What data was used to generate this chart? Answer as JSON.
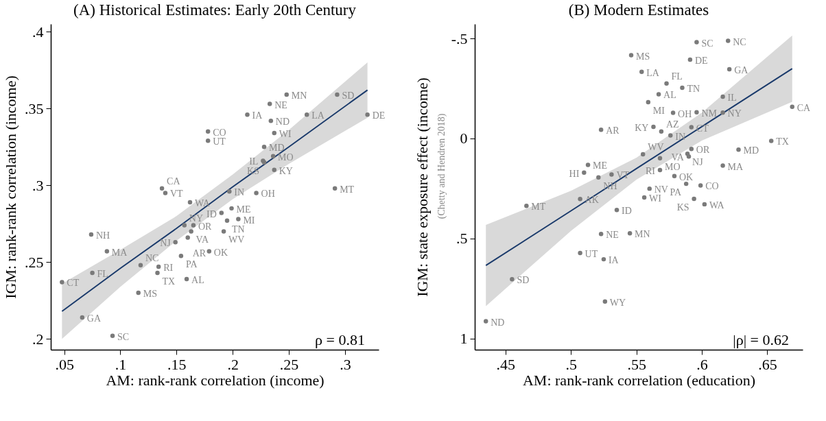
{
  "chart_data": [
    {
      "type": "scatter",
      "title": "(A) Historical Estimates: Early 20th Century",
      "xlabel": "AM: rank-rank correlation (income)",
      "ylabel": "IGM: rank-rank correlation (income)",
      "xlim": [
        0.038,
        0.33
      ],
      "ylim": [
        0.193,
        0.405
      ],
      "xticks": [
        {
          "value": 0.05,
          "label": ".05"
        },
        {
          "value": 0.1,
          "label": ".1"
        },
        {
          "value": 0.15,
          "label": ".15"
        },
        {
          "value": 0.2,
          "label": ".2"
        },
        {
          "value": 0.25,
          "label": ".25"
        },
        {
          "value": 0.3,
          "label": ".3"
        }
      ],
      "yticks": [
        {
          "value": 0.2,
          "label": ".2"
        },
        {
          "value": 0.25,
          "label": ".25"
        },
        {
          "value": 0.3,
          "label": ".3"
        },
        {
          "value": 0.35,
          "label": ".35"
        },
        {
          "value": 0.4,
          "label": ".4"
        }
      ],
      "series": [
        {
          "type": "scatter",
          "marker": "circle",
          "color": "#7a7a7a",
          "x": [
            0.248,
            0.293,
            0.233,
            0.213,
            0.266,
            0.32,
            0.234,
            0.178,
            0.178,
            0.237,
            0.228,
            0.236,
            0.227,
            0.228,
            0.237,
            0.137,
            0.14,
            0.291,
            0.197,
            0.221,
            0.162,
            0.199,
            0.19,
            0.205,
            0.195,
            0.157,
            0.165,
            0.163,
            0.192,
            0.16,
            0.074,
            0.149,
            0.088,
            0.179,
            0.154,
            0.118,
            0.134,
            0.075,
            0.133,
            0.159,
            0.048,
            0.116,
            0.066,
            0.093
          ],
          "values": [
            0.359,
            0.359,
            0.353,
            0.346,
            0.346,
            0.346,
            0.342,
            0.335,
            0.329,
            0.334,
            0.325,
            0.319,
            0.316,
            0.315,
            0.31,
            0.298,
            0.295,
            0.298,
            0.296,
            0.295,
            0.289,
            0.285,
            0.282,
            0.278,
            0.277,
            0.274,
            0.274,
            0.27,
            0.27,
            0.266,
            0.268,
            0.263,
            0.257,
            0.257,
            0.254,
            0.248,
            0.247,
            0.243,
            0.243,
            0.239,
            0.237,
            0.23,
            0.214,
            0.202
          ]
        },
        {
          "type": "line",
          "color": "#1a3a6b",
          "x": [
            0.048,
            0.1,
            0.15,
            0.2,
            0.25,
            0.32
          ],
          "values": [
            0.218,
            0.246,
            0.272,
            0.299,
            0.325,
            0.362
          ],
          "lower": [
            0.2,
            0.234,
            0.264,
            0.291,
            0.314,
            0.344
          ],
          "upper": [
            0.236,
            0.258,
            0.28,
            0.307,
            0.336,
            0.38
          ]
        }
      ],
      "annotations": [
        {
          "text": "MN",
          "x": 0.248,
          "y": 0.359
        },
        {
          "text": "SD",
          "x": 0.293,
          "y": 0.359
        },
        {
          "text": "NE",
          "x": 0.233,
          "y": 0.353
        },
        {
          "text": "IA",
          "x": 0.213,
          "y": 0.346
        },
        {
          "text": "LA",
          "x": 0.266,
          "y": 0.346
        },
        {
          "text": "DE",
          "x": 0.32,
          "y": 0.346
        },
        {
          "text": "ND",
          "x": 0.234,
          "y": 0.342
        },
        {
          "text": "CO",
          "x": 0.178,
          "y": 0.335
        },
        {
          "text": "UT",
          "x": 0.178,
          "y": 0.329
        },
        {
          "text": "WI",
          "x": 0.237,
          "y": 0.334
        },
        {
          "text": "MD",
          "x": 0.228,
          "y": 0.325
        },
        {
          "text": "MO",
          "x": 0.236,
          "y": 0.319
        },
        {
          "text": "IL",
          "x": 0.227,
          "y": 0.316
        },
        {
          "text": "KS",
          "x": 0.228,
          "y": 0.315
        },
        {
          "text": "KY",
          "x": 0.237,
          "y": 0.31
        },
        {
          "text": "CA",
          "x": 0.137,
          "y": 0.298
        },
        {
          "text": "VT",
          "x": 0.14,
          "y": 0.295
        },
        {
          "text": "MT",
          "x": 0.291,
          "y": 0.298
        },
        {
          "text": "IN",
          "x": 0.197,
          "y": 0.296
        },
        {
          "text": "OH",
          "x": 0.221,
          "y": 0.295
        },
        {
          "text": "WA",
          "x": 0.162,
          "y": 0.289
        },
        {
          "text": "ME",
          "x": 0.199,
          "y": 0.285
        },
        {
          "text": "ID",
          "x": 0.19,
          "y": 0.282
        },
        {
          "text": "MI",
          "x": 0.205,
          "y": 0.278
        },
        {
          "text": "TN",
          "x": 0.195,
          "y": 0.277
        },
        {
          "text": "NY",
          "x": 0.157,
          "y": 0.274
        },
        {
          "text": "OR",
          "x": 0.165,
          "y": 0.274
        },
        {
          "text": "VA",
          "x": 0.163,
          "y": 0.27
        },
        {
          "text": "WV",
          "x": 0.192,
          "y": 0.27
        },
        {
          "text": "AR",
          "x": 0.16,
          "y": 0.266
        },
        {
          "text": "NH",
          "x": 0.074,
          "y": 0.268
        },
        {
          "text": "NJ",
          "x": 0.149,
          "y": 0.263
        },
        {
          "text": "MA",
          "x": 0.088,
          "y": 0.257
        },
        {
          "text": "OK",
          "x": 0.179,
          "y": 0.257
        },
        {
          "text": "PA",
          "x": 0.154,
          "y": 0.254
        },
        {
          "text": "NC",
          "x": 0.118,
          "y": 0.248
        },
        {
          "text": "RI",
          "x": 0.134,
          "y": 0.247
        },
        {
          "text": "FL",
          "x": 0.075,
          "y": 0.243
        },
        {
          "text": "TX",
          "x": 0.133,
          "y": 0.243
        },
        {
          "text": "AL",
          "x": 0.159,
          "y": 0.239
        },
        {
          "text": "CT",
          "x": 0.048,
          "y": 0.237
        },
        {
          "text": "MS",
          "x": 0.116,
          "y": 0.23
        },
        {
          "text": "GA",
          "x": 0.066,
          "y": 0.214
        },
        {
          "text": "SC",
          "x": 0.093,
          "y": 0.202
        },
        "ρ =  0.81"
      ]
    },
    {
      "type": "scatter",
      "title": "(B) Modern Estimates",
      "xlabel": "AM: rank-rank correlation (education)",
      "ylabel": "IGM: state exposure effect (income)",
      "xlim": [
        0.4265,
        0.677
      ],
      "ylim": [
        1.056,
        -0.572
      ],
      "xticks": [
        {
          "value": 0.45,
          "label": ".45"
        },
        {
          "value": 0.5,
          "label": ".5"
        },
        {
          "value": 0.55,
          "label": ".55"
        },
        {
          "value": 0.6,
          "label": ".6"
        },
        {
          "value": 0.65,
          "label": ".65"
        }
      ],
      "yticks": [
        {
          "value": -0.5,
          "label": "-.5"
        },
        0,
        {
          "value": 0.5,
          "label": ".5"
        },
        1
      ],
      "series": [
        {
          "type": "scatter",
          "marker": "circle",
          "color": "#7a7a7a",
          "x": [
            0.596,
            0.62,
            0.546,
            0.591,
            0.621,
            0.554,
            0.573,
            0.585,
            0.567,
            0.616,
            0.559,
            0.578,
            0.596,
            0.616,
            0.669,
            0.523,
            0.563,
            0.569,
            0.576,
            0.592,
            0.653,
            0.592,
            0.628,
            0.555,
            0.589,
            0.59,
            0.568,
            0.513,
            0.616,
            0.51,
            0.568,
            0.531,
            0.521,
            0.579,
            0.588,
            0.599,
            0.56,
            0.556,
            0.594,
            0.602,
            0.507,
            0.466,
            0.535,
            0.523,
            0.545,
            0.507,
            0.525,
            0.455,
            0.526,
            0.435
          ],
          "values": [
            -0.481,
            -0.488,
            -0.416,
            -0.394,
            -0.346,
            -0.333,
            -0.275,
            -0.253,
            -0.221,
            -0.209,
            -0.181,
            -0.128,
            -0.131,
            -0.129,
            -0.158,
            -0.043,
            -0.058,
            -0.035,
            -0.015,
            -0.056,
            0.012,
            0.053,
            0.056,
            0.079,
            0.077,
            0.09,
            0.099,
            0.132,
            0.136,
            0.171,
            0.158,
            0.18,
            0.195,
            0.188,
            0.227,
            0.235,
            0.251,
            0.295,
            0.302,
            0.329,
            0.303,
            0.337,
            0.358,
            0.478,
            0.474,
            0.573,
            0.604,
            0.704,
            0.815,
            0.914
          ]
        },
        {
          "type": "line",
          "color": "#1a3a6b",
          "x": [
            0.435,
            0.5,
            0.55,
            0.6,
            0.669
          ],
          "values": [
            0.635,
            0.362,
            0.151,
            -0.059,
            -0.349
          ],
          "lower": [
            0.432,
            0.262,
            0.096,
            -0.129,
            -0.515
          ],
          "upper": [
            0.838,
            0.462,
            0.206,
            0.011,
            -0.183
          ]
        }
      ],
      "annotations": [
        {
          "text": "SC",
          "x": 0.596,
          "y": -0.481
        },
        {
          "text": "NC",
          "x": 0.62,
          "y": -0.488
        },
        {
          "text": "MS",
          "x": 0.546,
          "y": -0.416
        },
        {
          "text": "DE",
          "x": 0.591,
          "y": -0.394
        },
        {
          "text": "GA",
          "x": 0.621,
          "y": -0.346
        },
        {
          "text": "LA",
          "x": 0.554,
          "y": -0.333
        },
        {
          "text": "FL",
          "x": 0.573,
          "y": -0.275
        },
        {
          "text": "TN",
          "x": 0.585,
          "y": -0.253
        },
        {
          "text": "AL",
          "x": 0.567,
          "y": -0.221
        },
        {
          "text": "IL",
          "x": 0.616,
          "y": -0.209
        },
        {
          "text": "MI",
          "x": 0.559,
          "y": -0.181
        },
        {
          "text": "OH",
          "x": 0.578,
          "y": -0.128
        },
        {
          "text": "NM",
          "x": 0.596,
          "y": -0.131
        },
        {
          "text": "NY",
          "x": 0.616,
          "y": -0.129
        },
        {
          "text": "CA",
          "x": 0.669,
          "y": -0.158
        },
        {
          "text": "AR",
          "x": 0.523,
          "y": -0.043
        },
        {
          "text": "KY",
          "x": 0.563,
          "y": -0.058
        },
        {
          "text": "AZ",
          "x": 0.569,
          "y": -0.035
        },
        {
          "text": "IN",
          "x": 0.576,
          "y": -0.015
        },
        {
          "text": "CT",
          "x": 0.592,
          "y": -0.056
        },
        {
          "text": "TX",
          "x": 0.653,
          "y": 0.012
        },
        {
          "text": "OR",
          "x": 0.592,
          "y": 0.053
        },
        {
          "text": "MD",
          "x": 0.628,
          "y": 0.056
        },
        {
          "text": "WV",
          "x": 0.555,
          "y": 0.079
        },
        {
          "text": "NJ",
          "x": 0.589,
          "y": 0.077
        },
        {
          "text": "VA",
          "x": 0.59,
          "y": 0.09
        },
        {
          "text": "MO",
          "x": 0.568,
          "y": 0.099
        },
        {
          "text": "ME",
          "x": 0.513,
          "y": 0.132
        },
        {
          "text": "MA",
          "x": 0.616,
          "y": 0.136
        },
        {
          "text": "HI",
          "x": 0.51,
          "y": 0.171
        },
        {
          "text": "RI",
          "x": 0.568,
          "y": 0.158
        },
        {
          "text": "VT",
          "x": 0.531,
          "y": 0.18
        },
        {
          "text": "NH",
          "x": 0.521,
          "y": 0.195
        },
        {
          "text": "OK",
          "x": 0.579,
          "y": 0.188
        },
        {
          "text": "PA",
          "x": 0.588,
          "y": 0.227
        },
        {
          "text": "CO",
          "x": 0.599,
          "y": 0.235
        },
        {
          "text": "NV",
          "x": 0.56,
          "y": 0.251
        },
        {
          "text": "WI",
          "x": 0.556,
          "y": 0.295
        },
        {
          "text": "KS",
          "x": 0.594,
          "y": 0.302
        },
        {
          "text": "WA",
          "x": 0.602,
          "y": 0.329
        },
        {
          "text": "AK",
          "x": 0.507,
          "y": 0.303
        },
        {
          "text": "MT",
          "x": 0.466,
          "y": 0.337
        },
        {
          "text": "ID",
          "x": 0.535,
          "y": 0.358
        },
        {
          "text": "NE",
          "x": 0.523,
          "y": 0.478
        },
        {
          "text": "MN",
          "x": 0.545,
          "y": 0.474
        },
        {
          "text": "UT",
          "x": 0.507,
          "y": 0.573
        },
        {
          "text": "IA",
          "x": 0.525,
          "y": 0.604
        },
        {
          "text": "SD",
          "x": 0.455,
          "y": 0.704
        },
        {
          "text": "WY",
          "x": 0.526,
          "y": 0.815
        },
        {
          "text": "ND",
          "x": 0.435,
          "y": 0.914
        },
        "|ρ| =  0.62",
        "(Chetty and Hendren 2018)"
      ]
    }
  ]
}
